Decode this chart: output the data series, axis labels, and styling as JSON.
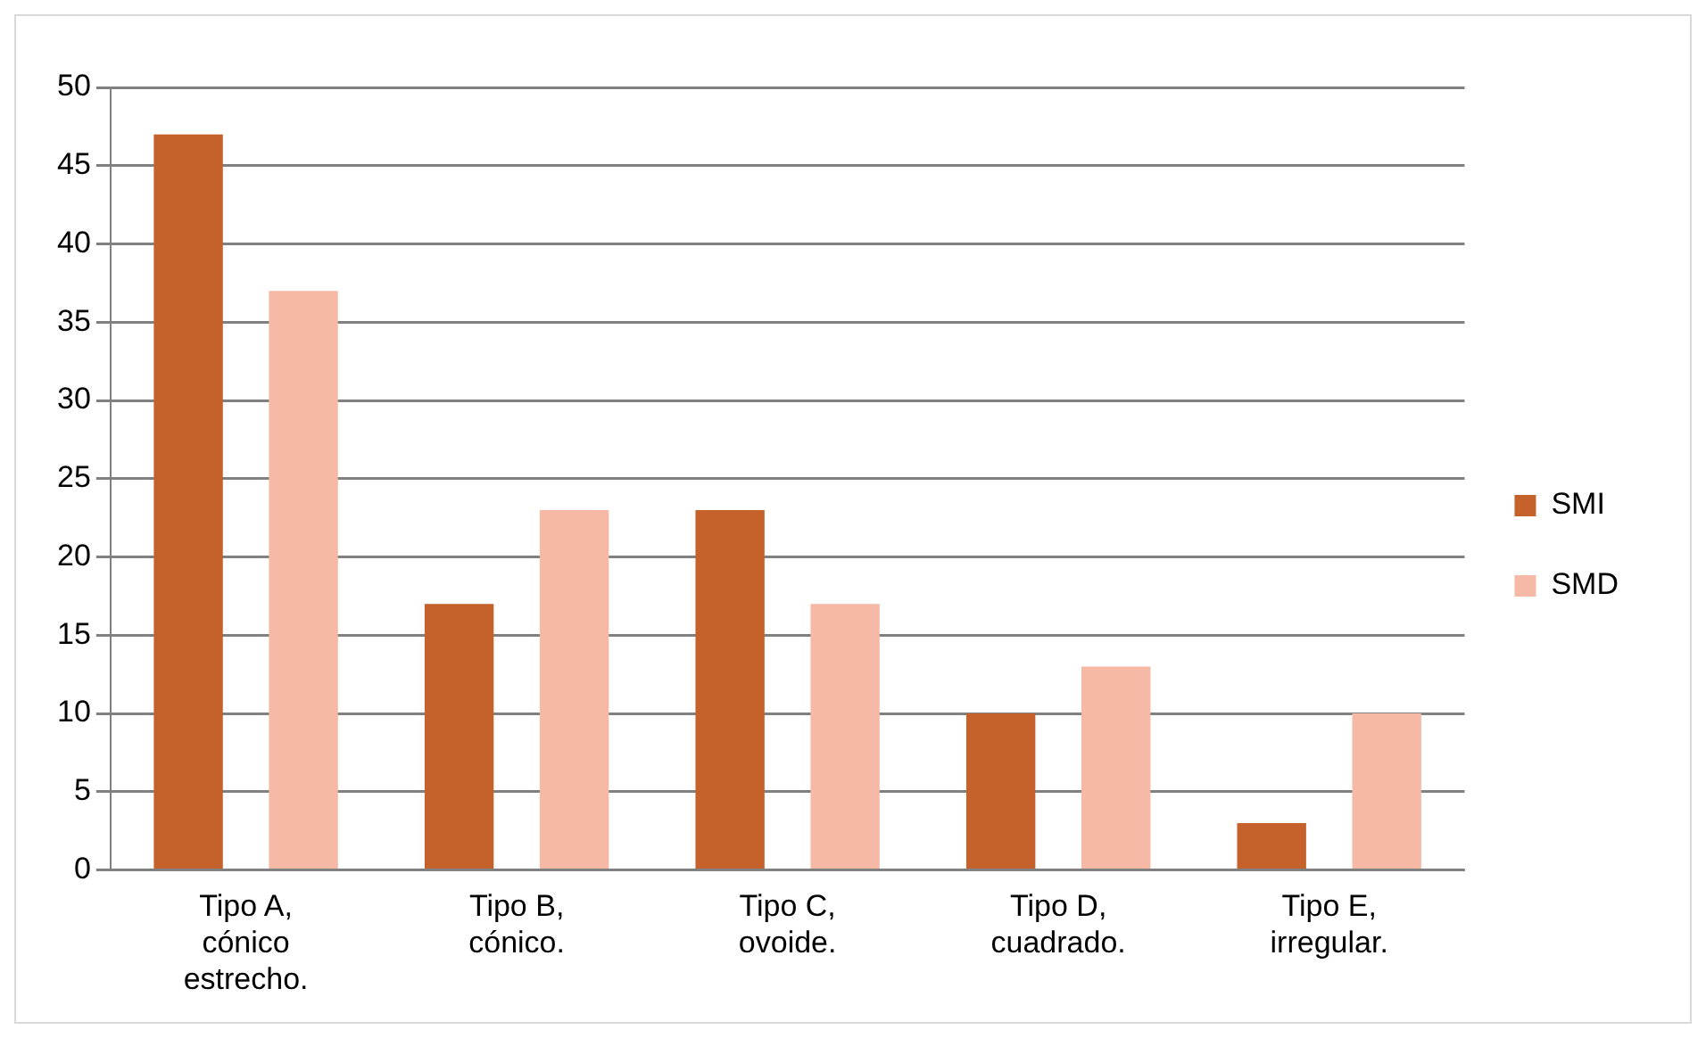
{
  "chart_data": {
    "type": "bar",
    "categories": [
      "Tipo A, cónico estrecho.",
      "Tipo B, cónico.",
      "Tipo C, ovoide.",
      "Tipo D, cuadrado.",
      "Tipo E, irregular."
    ],
    "series": [
      {
        "name": "SMI",
        "color": "#c5622b",
        "values": [
          47,
          17,
          23,
          10,
          3
        ]
      },
      {
        "name": "SMD",
        "color": "#f6b9a6",
        "values": [
          37,
          23,
          17,
          13,
          10
        ]
      }
    ],
    "ylim": [
      0,
      50
    ],
    "yticks": [
      0,
      5,
      10,
      15,
      20,
      25,
      30,
      35,
      40,
      45,
      50
    ],
    "grid": "y",
    "legend": "right"
  }
}
